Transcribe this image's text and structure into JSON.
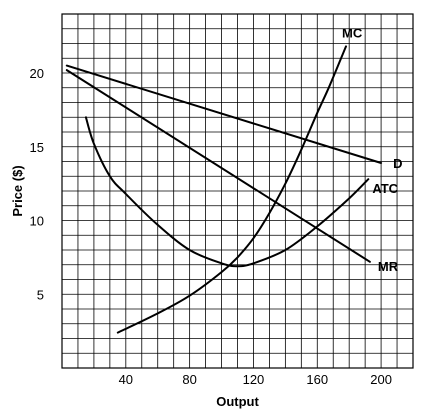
{
  "chart_data": {
    "type": "line",
    "title": "",
    "xlabel": "Output",
    "ylabel": "Price ($)",
    "xlim": [
      0,
      220
    ],
    "ylim": [
      0,
      24
    ],
    "grid": true,
    "x_ticks": [
      40,
      80,
      120,
      160,
      200
    ],
    "y_ticks": [
      5,
      10,
      15,
      20
    ],
    "series": [
      {
        "name": "D",
        "points": [
          [
            3,
            20.5
          ],
          [
            200,
            13.9
          ]
        ]
      },
      {
        "name": "MR",
        "points": [
          [
            3,
            20.2
          ],
          [
            193,
            7.2
          ]
        ]
      },
      {
        "name": "MC",
        "points": [
          [
            35,
            2.4
          ],
          [
            60,
            3.7
          ],
          [
            80,
            4.9
          ],
          [
            100,
            6.5
          ],
          [
            110,
            7.5
          ],
          [
            120,
            8.8
          ],
          [
            130,
            10.5
          ],
          [
            140,
            12.5
          ],
          [
            150,
            14.8
          ],
          [
            160,
            17.3
          ],
          [
            168,
            19.2
          ],
          [
            178,
            21.8
          ]
        ]
      },
      {
        "name": "ATC",
        "points": [
          [
            15,
            17
          ],
          [
            20,
            15.2
          ],
          [
            30,
            13
          ],
          [
            40,
            11.8
          ],
          [
            60,
            9.7
          ],
          [
            80,
            8.0
          ],
          [
            100,
            7.1
          ],
          [
            110,
            6.9
          ],
          [
            120,
            7.1
          ],
          [
            140,
            8.0
          ],
          [
            160,
            9.6
          ],
          [
            180,
            11.5
          ],
          [
            192,
            12.8
          ]
        ]
      }
    ]
  }
}
